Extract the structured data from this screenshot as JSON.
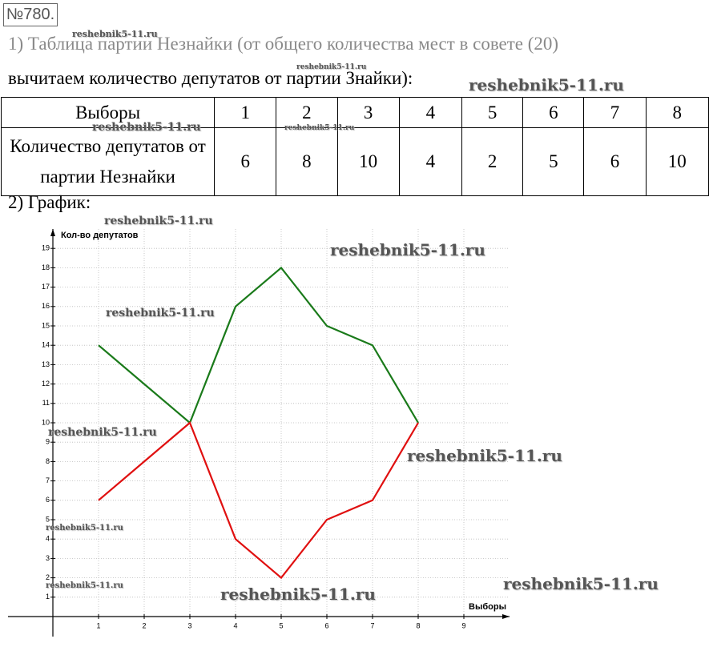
{
  "header": {
    "number": "№780."
  },
  "text": {
    "line1": "1) Таблица партии Незнайки (от общего количества мест в совете (20)",
    "line2": "вычитаем количество депутатов от партии Знайки):",
    "line3": "2) График:"
  },
  "table": {
    "rows": [
      [
        "Выборы",
        1,
        2,
        3,
        4,
        5,
        6,
        7,
        8
      ],
      [
        "Количество депутатов от партии Незнайки",
        6,
        8,
        10,
        4,
        2,
        5,
        6,
        10
      ]
    ]
  },
  "chart_data": {
    "type": "line",
    "y_label": "Кол-во депутатов",
    "x_label": "Выборы",
    "x": [
      1,
      2,
      3,
      4,
      5,
      6,
      7,
      8
    ],
    "series": [
      {
        "color": "#1a7a1a",
        "values": [
          14,
          12,
          10,
          16,
          18,
          15,
          14,
          10
        ]
      },
      {
        "color": "#e01010",
        "values": [
          6,
          8,
          10,
          4,
          2,
          5,
          6,
          10
        ]
      }
    ],
    "xlim": [
      0,
      10
    ],
    "ylim": [
      0,
      20
    ],
    "xticks": [
      1,
      2,
      3,
      4,
      5,
      6,
      7,
      8,
      9
    ],
    "yticks": [
      1,
      2,
      3,
      4,
      5,
      6,
      7,
      8,
      9,
      10,
      11,
      12,
      13,
      14,
      15,
      16,
      17,
      18,
      19
    ],
    "grid": true
  },
  "watermarks": [
    "reshebnik5-11.ru",
    "reshebnik5-11.ru",
    "reshebnik5-11.ru",
    "reshebnik5-11.ru",
    "reshebnik5-11.ru",
    "reshebnik5-11.ru",
    "reshebnik5-11.ru",
    "reshebnik5-11.ru",
    "reshebnik5-11.ru",
    "reshebnik5-11.ru",
    "reshebnik5-11.ru",
    "reshebnik5-11.ru",
    "reshebnik5-11.ru",
    "reshebnik5-11.ru"
  ]
}
